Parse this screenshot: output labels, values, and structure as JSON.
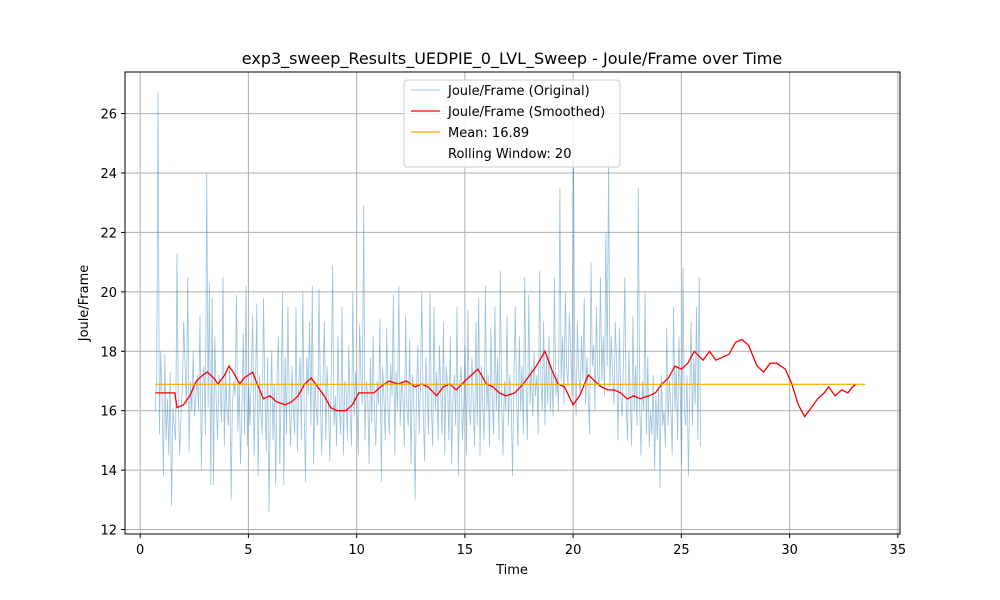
{
  "chart_data": {
    "type": "line",
    "title": "exp3_sweep_Results_UEDPIE_0_LVL_Sweep - Joule/Frame over Time",
    "xlabel": "Time",
    "ylabel": "Joule/Frame",
    "xlim": [
      -0.7,
      35.1
    ],
    "ylim": [
      11.85,
      27.4
    ],
    "xticks": [
      0,
      5,
      10,
      15,
      20,
      25,
      30,
      35
    ],
    "yticks": [
      12,
      14,
      16,
      18,
      20,
      22,
      24,
      26
    ],
    "grid": true,
    "legend_position": "upper-center",
    "series": [
      {
        "name": "Joule/Frame (Original)",
        "color": "#1f77b4",
        "x_start": 0.7,
        "x_step": 0.0625,
        "values": [
          16.0,
          17.2,
          26.7,
          15.2,
          18.0,
          16.5,
          13.8,
          17.9,
          15.0,
          16.4,
          14.5,
          17.3,
          12.8,
          16.1,
          15.5,
          15.0,
          21.3,
          16.2,
          14.5,
          15.9,
          16.8,
          19.0,
          17.5,
          16.2,
          20.5,
          14.6,
          17.0,
          16.0,
          18.0,
          15.8,
          16.5,
          17.2,
          16.0,
          19.2,
          14.0,
          16.8,
          17.5,
          15.2,
          24.0,
          16.1,
          20.3,
          13.5,
          19.8,
          13.5,
          18.5,
          16.4,
          15.0,
          17.2,
          16.8,
          15.6,
          20.5,
          14.8,
          17.3,
          16.0,
          15.5,
          17.6,
          13.0,
          16.2,
          17.0,
          16.5,
          19.9,
          15.3,
          17.0,
          14.2,
          16.0,
          18.6,
          15.2,
          20.2,
          14.8,
          16.8,
          15.5,
          17.3,
          19.2,
          14.5,
          16.6,
          19.6,
          13.8,
          17.2,
          16.0,
          15.2,
          19.8,
          16.5,
          14.6,
          17.8,
          12.6,
          16.0,
          18.0,
          15.0,
          16.9,
          13.5,
          17.2,
          18.5,
          14.2,
          16.4,
          20.0,
          13.5,
          17.8,
          15.2,
          19.5,
          16.2,
          14.8,
          17.5,
          16.0,
          15.2,
          19.5,
          14.6,
          16.8,
          17.8,
          15.0,
          20.0,
          16.2,
          13.6,
          17.8,
          16.5,
          19.0,
          15.5,
          20.2,
          14.2,
          17.0,
          16.0,
          15.5,
          20.1,
          16.4,
          14.5,
          17.2,
          19.0,
          15.0,
          17.5,
          16.2,
          14.3,
          17.0,
          20.9,
          15.5,
          16.5,
          14.8,
          18.5,
          16.2,
          15.2,
          19.5,
          14.5,
          17.0,
          16.8,
          15.0,
          18.2,
          16.0,
          14.8,
          20.0,
          15.8,
          17.3,
          16.4,
          14.5,
          18.9,
          17.0,
          16.2,
          22.9,
          15.0,
          17.0,
          16.5,
          14.2,
          17.8,
          15.6,
          18.5,
          16.0,
          14.8,
          17.0,
          16.2,
          19.1,
          13.6,
          17.5,
          16.4,
          15.0,
          18.8,
          16.0,
          15.2,
          17.6,
          16.5,
          19.9,
          14.5,
          17.3,
          16.0,
          20.2,
          15.5,
          17.0,
          16.5,
          14.8,
          19.2,
          16.0,
          15.5,
          18.4,
          14.2,
          17.2,
          16.6,
          13.0,
          16.5,
          18.2,
          15.2,
          17.0,
          20.0,
          16.0,
          14.3,
          17.8,
          16.5,
          15.2,
          20.0,
          16.2,
          14.8,
          19.5,
          16.0,
          17.3,
          15.0,
          18.2,
          16.5,
          15.2,
          19.0,
          14.5,
          17.5,
          16.8,
          15.0,
          18.5,
          14.2,
          16.5,
          17.2,
          15.5,
          19.5,
          13.8,
          16.8,
          17.5,
          15.0,
          16.2,
          18.2,
          14.5,
          19.4,
          16.0,
          15.5,
          17.8,
          16.2,
          14.8,
          19.0,
          15.5,
          19.8,
          14.5,
          17.5,
          16.2,
          15.0,
          20.2,
          16.0,
          17.2,
          14.8,
          18.8,
          16.5,
          15.2,
          19.5,
          16.0,
          17.8,
          15.0,
          20.7,
          16.2,
          14.5,
          17.0,
          16.0,
          19.2,
          15.5,
          17.2,
          16.5,
          13.8,
          17.0,
          19.5,
          16.5,
          14.8,
          18.5,
          16.0,
          17.5,
          15.2,
          20.5,
          16.8,
          15.0,
          19.9,
          16.2,
          17.5,
          15.8,
          18.0,
          16.5,
          17.2,
          15.2,
          20.7,
          17.0,
          16.0,
          19.0,
          15.5,
          17.8,
          16.2,
          18.5,
          16.0,
          17.5,
          15.8,
          20.5,
          16.5,
          17.2,
          16.0,
          23.5,
          17.0,
          18.5,
          16.2,
          20.0,
          17.5,
          16.8,
          19.3,
          18.0,
          16.5,
          25.4,
          17.5,
          15.8,
          19.0,
          17.2,
          16.5,
          18.5,
          17.0,
          19.8,
          16.2,
          17.8,
          16.5,
          15.2,
          21.0,
          17.5,
          18.2,
          16.0,
          19.5,
          17.2,
          16.8,
          20.5,
          17.0,
          18.5,
          16.5,
          22.0,
          17.5,
          24.5,
          16.8,
          18.5,
          17.2,
          16.2,
          19.0,
          17.5,
          15.0,
          18.8,
          16.5,
          15.8,
          17.5,
          20.5,
          16.2,
          15.0,
          18.0,
          16.5,
          14.8,
          19.2,
          16.0,
          17.5,
          15.5,
          23.5,
          16.2,
          14.5,
          17.0,
          16.0,
          20.0,
          15.2,
          17.8,
          14.8,
          16.0,
          15.2,
          17.2,
          14.0,
          16.5,
          15.0,
          16.8,
          13.4,
          17.2,
          15.5,
          16.0,
          14.8,
          18.8,
          15.5,
          17.0,
          16.2,
          14.5,
          19.5,
          16.0,
          17.5,
          15.0,
          18.5,
          16.5,
          14.2,
          20.8,
          16.0,
          15.5,
          17.2,
          13.8,
          16.5,
          19.0,
          15.5,
          17.8,
          16.2,
          19.5,
          15.0,
          20.5,
          14.8
        ]
      },
      {
        "name": "Joule/Frame (Smoothed)",
        "color": "#ff0000",
        "points": [
          [
            0.7,
            16.6
          ],
          [
            1.6,
            16.6
          ],
          [
            1.7,
            16.1
          ],
          [
            2.0,
            16.2
          ],
          [
            2.3,
            16.5
          ],
          [
            2.6,
            17.0
          ],
          [
            2.9,
            17.2
          ],
          [
            3.1,
            17.3
          ],
          [
            3.4,
            17.1
          ],
          [
            3.6,
            16.9
          ],
          [
            3.9,
            17.2
          ],
          [
            4.1,
            17.5
          ],
          [
            4.3,
            17.3
          ],
          [
            4.6,
            16.9
          ],
          [
            4.8,
            17.1
          ],
          [
            5.2,
            17.3
          ],
          [
            5.4,
            16.9
          ],
          [
            5.7,
            16.4
          ],
          [
            6.0,
            16.5
          ],
          [
            6.3,
            16.3
          ],
          [
            6.7,
            16.2
          ],
          [
            7.0,
            16.3
          ],
          [
            7.3,
            16.5
          ],
          [
            7.6,
            16.9
          ],
          [
            7.9,
            17.1
          ],
          [
            8.2,
            16.8
          ],
          [
            8.5,
            16.5
          ],
          [
            8.8,
            16.1
          ],
          [
            9.1,
            16.0
          ],
          [
            9.5,
            16.0
          ],
          [
            9.8,
            16.2
          ],
          [
            10.1,
            16.6
          ],
          [
            10.5,
            16.6
          ],
          [
            10.8,
            16.6
          ],
          [
            11.1,
            16.8
          ],
          [
            11.5,
            17.0
          ],
          [
            11.9,
            16.9
          ],
          [
            12.3,
            17.0
          ],
          [
            12.7,
            16.8
          ],
          [
            13.0,
            16.9
          ],
          [
            13.3,
            16.8
          ],
          [
            13.7,
            16.5
          ],
          [
            14.0,
            16.8
          ],
          [
            14.3,
            16.9
          ],
          [
            14.6,
            16.7
          ],
          [
            15.0,
            17.0
          ],
          [
            15.3,
            17.2
          ],
          [
            15.6,
            17.4
          ],
          [
            16.0,
            16.9
          ],
          [
            16.3,
            16.8
          ],
          [
            16.6,
            16.6
          ],
          [
            16.9,
            16.5
          ],
          [
            17.3,
            16.6
          ],
          [
            17.7,
            16.9
          ],
          [
            18.0,
            17.2
          ],
          [
            18.3,
            17.5
          ],
          [
            18.7,
            18.0
          ],
          [
            19.0,
            17.4
          ],
          [
            19.3,
            16.9
          ],
          [
            19.6,
            16.8
          ],
          [
            20.0,
            16.2
          ],
          [
            20.3,
            16.5
          ],
          [
            20.7,
            17.2
          ],
          [
            21.0,
            17.0
          ],
          [
            21.3,
            16.8
          ],
          [
            21.6,
            16.7
          ],
          [
            21.9,
            16.7
          ],
          [
            22.2,
            16.6
          ],
          [
            22.5,
            16.4
          ],
          [
            22.8,
            16.5
          ],
          [
            23.1,
            16.4
          ],
          [
            23.5,
            16.5
          ],
          [
            23.8,
            16.6
          ],
          [
            24.1,
            16.9
          ],
          [
            24.4,
            17.1
          ],
          [
            24.7,
            17.5
          ],
          [
            25.0,
            17.4
          ],
          [
            25.3,
            17.6
          ],
          [
            25.6,
            18.0
          ],
          [
            26.0,
            17.7
          ],
          [
            26.3,
            18.0
          ],
          [
            26.6,
            17.7
          ],
          [
            26.9,
            17.8
          ],
          [
            27.2,
            17.9
          ],
          [
            27.5,
            18.3
          ],
          [
            27.8,
            18.4
          ],
          [
            28.1,
            18.2
          ],
          [
            28.5,
            17.5
          ],
          [
            28.8,
            17.3
          ],
          [
            29.1,
            17.6
          ],
          [
            29.4,
            17.6
          ],
          [
            29.8,
            17.4
          ],
          [
            30.1,
            16.9
          ],
          [
            30.4,
            16.2
          ],
          [
            30.7,
            15.8
          ],
          [
            31.0,
            16.1
          ],
          [
            31.3,
            16.4
          ],
          [
            31.6,
            16.6
          ],
          [
            31.8,
            16.8
          ],
          [
            32.1,
            16.5
          ],
          [
            32.4,
            16.7
          ],
          [
            32.7,
            16.6
          ],
          [
            32.9,
            16.8
          ],
          [
            33.1,
            16.9
          ]
        ]
      },
      {
        "name": "Mean: 16.89",
        "color": "#ffa500",
        "points": [
          [
            0.7,
            16.89
          ],
          [
            33.5,
            16.89
          ]
        ]
      }
    ],
    "legend_entries": [
      {
        "label": "Joule/Frame (Original)",
        "color": "#9fc4e0",
        "style": "line"
      },
      {
        "label": "Joule/Frame (Smoothed)",
        "color": "#ff0000",
        "style": "line"
      },
      {
        "label": "Mean: 16.89",
        "color": "#ffa500",
        "style": "line"
      },
      {
        "label": "Rolling Window: 20",
        "color": "",
        "style": "none"
      }
    ]
  }
}
